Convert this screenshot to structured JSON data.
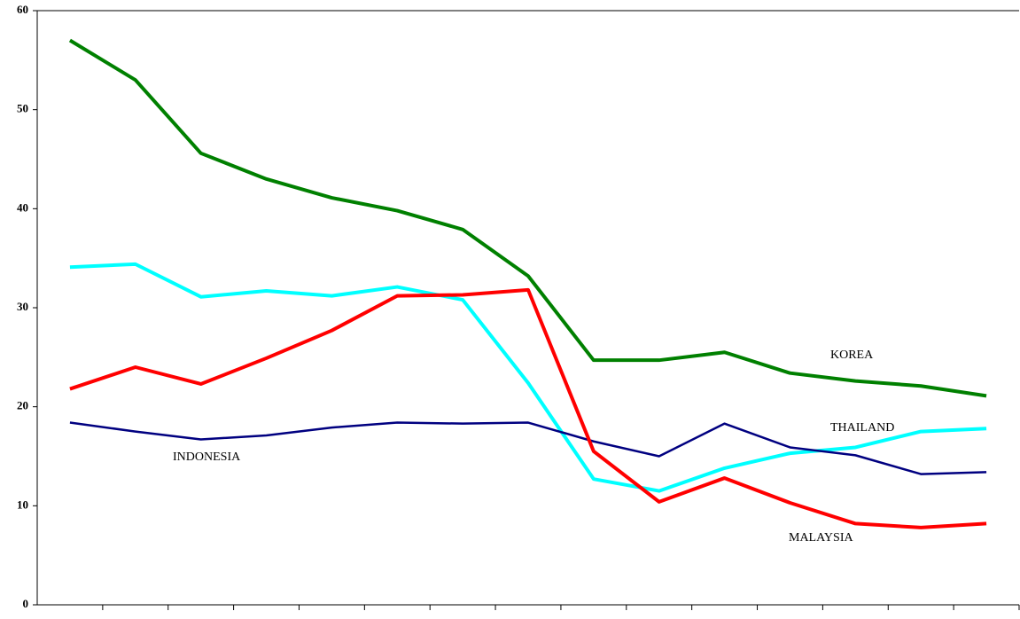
{
  "chart_data": {
    "type": "line",
    "categories": [
      null,
      null,
      null,
      null,
      null,
      null,
      null,
      null,
      null,
      null,
      null,
      null,
      null,
      null,
      null
    ],
    "series": [
      {
        "name": "KOREA",
        "color": "#008000",
        "values": [
          57,
          53,
          45.6,
          43,
          41.1,
          39.8,
          37.9,
          33.2,
          24.7,
          24.7,
          25.5,
          23.4,
          22.6,
          22.1,
          21.1
        ]
      },
      {
        "name": "THAILAND",
        "color": "#00ffff",
        "values": [
          34.1,
          34.4,
          31.1,
          31.7,
          31.2,
          32.1,
          30.8,
          22.4,
          12.7,
          11.5,
          13.8,
          15.3,
          15.9,
          17.5,
          17.8
        ]
      },
      {
        "name": "INDONESIA",
        "color": "#000080",
        "values": [
          18.4,
          17.5,
          16.7,
          17.1,
          17.9,
          18.4,
          18.3,
          18.4,
          16.5,
          15.0,
          18.3,
          15.9,
          15.1,
          13.2,
          13.4
        ]
      },
      {
        "name": "MALAYSIA",
        "color": "#ff0000",
        "values": [
          21.8,
          24.0,
          22.3,
          24.9,
          27.7,
          31.2,
          31.3,
          31.8,
          15.5,
          10.4,
          12.8,
          10.3,
          8.2,
          7.8,
          8.2
        ]
      }
    ],
    "ylim": [
      0,
      60
    ],
    "yticks": [
      0,
      10,
      20,
      30,
      40,
      50,
      60
    ],
    "grid": false
  }
}
